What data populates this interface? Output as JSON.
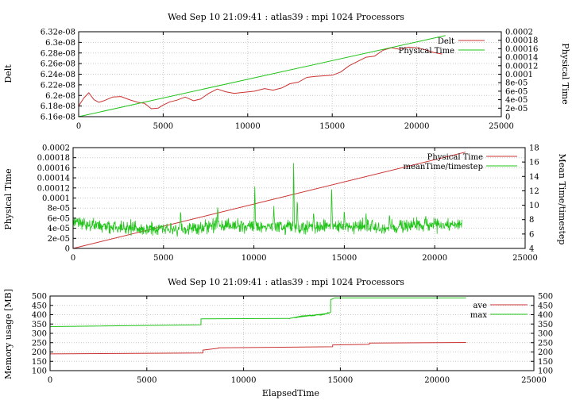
{
  "colors": {
    "red": "#cc3333",
    "green": "#22c41a",
    "green_dark": "#109a10",
    "grid": "#c8c8c8",
    "axis": "#000000"
  },
  "chart_data": [
    {
      "type": "line",
      "title": "Wed Sep 10 21:09:41 : atlas39 : mpi 1024 Processors",
      "ylabel": "Delt",
      "y2label": "Physical Time",
      "xlim": [
        0,
        25000
      ],
      "ylim": [
        6.16e-08,
        6.32e-08
      ],
      "y2lim": [
        0,
        0.0002
      ],
      "grid": true,
      "legend": "top-right",
      "x_tick_labels": [
        "0",
        "5000",
        "10000",
        "15000",
        "20000",
        "25000"
      ],
      "y_tick_labels": [
        "6.16e-08",
        "6.18e-08",
        "6.2e-08",
        "6.22e-08",
        "6.24e-08",
        "6.26e-08",
        "6.28e-08",
        "6.3e-08",
        "6.32e-08"
      ],
      "y2_tick_labels": [
        "0",
        "2e-05",
        "4e-05",
        "6e-05",
        "8e-05",
        "0.0001",
        "0.00012",
        "0.00014",
        "0.00016",
        "0.00018",
        "0.0002"
      ],
      "series": [
        {
          "name": "Delt",
          "axis": "y",
          "color": "#cc3333",
          "x": [
            0,
            300,
            600,
            900,
            1200,
            1500,
            2000,
            2500,
            3000,
            3500,
            3900,
            4300,
            4700,
            5000,
            5400,
            5800,
            6300,
            6800,
            7200,
            7700,
            8200,
            8700,
            9200,
            9800,
            10400,
            11000,
            11500,
            12000,
            12500,
            13000,
            13500,
            14000,
            14500,
            15000,
            15500,
            16000,
            16500,
            17000,
            17500,
            18000,
            18500,
            19000,
            19500,
            20000,
            20500,
            21000,
            21500
          ],
          "y": [
            6.18e-08,
            6.195e-08,
            6.205e-08,
            6.192e-08,
            6.187e-08,
            6.19e-08,
            6.197e-08,
            6.198e-08,
            6.192e-08,
            6.187e-08,
            6.185e-08,
            6.175e-08,
            6.176e-08,
            6.182e-08,
            6.188e-08,
            6.191e-08,
            6.197e-08,
            6.19e-08,
            6.193e-08,
            6.204e-08,
            6.212e-08,
            6.207e-08,
            6.204e-08,
            6.206e-08,
            6.208e-08,
            6.213e-08,
            6.21e-08,
            6.214e-08,
            6.222e-08,
            6.225e-08,
            6.234e-08,
            6.236e-08,
            6.237e-08,
            6.238e-08,
            6.244e-08,
            6.256e-08,
            6.264e-08,
            6.272e-08,
            6.274e-08,
            6.285e-08,
            6.29e-08,
            6.287e-08,
            6.291e-08,
            6.29e-08,
            6.286e-08,
            6.281e-08,
            6.278e-08
          ]
        },
        {
          "name": "Physical Time",
          "axis": "y2",
          "color": "#22c41a",
          "x": [
            0,
            21700
          ],
          "y": [
            0,
            0.000191
          ]
        }
      ]
    },
    {
      "type": "line",
      "title": "",
      "ylabel": "Physical Time",
      "y2label": "Mean Time/timestep",
      "xlim": [
        0,
        25000
      ],
      "ylim": [
        0,
        0.0002
      ],
      "y2lim": [
        4,
        18
      ],
      "grid": true,
      "legend": "top-right",
      "x_tick_labels": [
        "0",
        "5000",
        "10000",
        "15000",
        "20000",
        "25000"
      ],
      "y_tick_labels": [
        "0",
        "2e-05",
        "4e-05",
        "6e-05",
        "8e-05",
        "0.0001",
        "0.00012",
        "0.00014",
        "0.00016",
        "0.00018",
        "0.0002"
      ],
      "y2_tick_labels": [
        "4",
        "6",
        "8",
        "10",
        "12",
        "14",
        "16",
        "18"
      ],
      "series": [
        {
          "name": "Physical Time",
          "axis": "y",
          "color": "#cc3333",
          "x": [
            0,
            21700
          ],
          "y": [
            0,
            0.000191
          ]
        },
        {
          "name": "meanTime/timestep",
          "axis": "y2",
          "color": "#22c41a",
          "base": 7.0,
          "noise": 0.55,
          "x": [
            0,
            2000,
            4000,
            6000,
            8000,
            10000,
            12000,
            14000,
            16000,
            18000,
            20000,
            21500
          ],
          "y": [
            7.6,
            7.0,
            6.7,
            6.7,
            7.2,
            7.2,
            7.0,
            7.1,
            7.0,
            7.0,
            7.3,
            7.3
          ],
          "spikes": [
            {
              "x": 12200,
              "y": 16.7
            },
            {
              "x": 14300,
              "y": 13.3
            },
            {
              "x": 10050,
              "y": 13.1
            },
            {
              "x": 12400,
              "y": 11.3
            },
            {
              "x": 8000,
              "y": 10.1
            },
            {
              "x": 5950,
              "y": 9.6
            },
            {
              "x": 11100,
              "y": 10.0
            },
            {
              "x": 15000,
              "y": 9.6
            },
            {
              "x": 13300,
              "y": 9.3
            },
            {
              "x": 17500,
              "y": 8.9
            },
            {
              "x": 16200,
              "y": 9.0
            },
            {
              "x": 19500,
              "y": 8.7
            }
          ]
        }
      ]
    },
    {
      "type": "line",
      "title": "Wed Sep 10 21:09:41 : atlas39 : mpi 1024 Processors",
      "xlabel": "ElapsedTime",
      "ylabel": "Memory usage [MB]",
      "xlim": [
        0,
        25000
      ],
      "ylim": [
        100,
        500
      ],
      "y2lim": [
        100,
        500
      ],
      "grid": true,
      "legend": "top-right",
      "x_tick_labels": [
        "0",
        "5000",
        "10000",
        "15000",
        "20000",
        "25000"
      ],
      "y_tick_labels": [
        "100",
        "150",
        "200",
        "250",
        "300",
        "350",
        "400",
        "450",
        "500"
      ],
      "y2_tick_labels": [
        "100",
        "150",
        "200",
        "250",
        "300",
        "350",
        "400",
        "450",
        "500"
      ],
      "series": [
        {
          "name": "ave",
          "color": "#cc3333",
          "x": [
            0,
            7900,
            7900,
            8700,
            8700,
            14600,
            14600,
            16500,
            16500,
            21500
          ],
          "y": [
            190,
            195,
            210,
            220,
            222,
            228,
            238,
            241,
            248,
            251
          ]
        },
        {
          "name": "max",
          "color": "#22c41a",
          "x": [
            0,
            7800,
            7800,
            12300,
            12600,
            13000,
            14000,
            14500,
            14500,
            14700,
            21500
          ],
          "y": [
            336,
            346,
            378,
            380,
            384,
            393,
            400,
            412,
            480,
            490,
            490
          ]
        }
      ]
    }
  ]
}
